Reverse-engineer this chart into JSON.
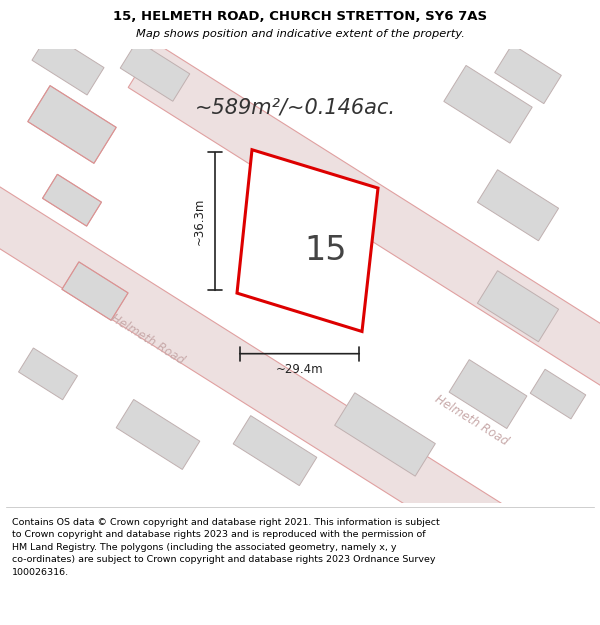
{
  "title_line1": "15, HELMETH ROAD, CHURCH STRETTON, SY6 7AS",
  "title_line2": "Map shows position and indicative extent of the property.",
  "area_text": "~589m²/~0.146ac.",
  "number_label": "15",
  "road_label1": "Helmeth Road",
  "road_label2": "Helmeth Road",
  "dim_height": "~36.3m",
  "dim_width": "~29.4m",
  "footer_text": "Contains OS data © Crown copyright and database right 2021. This information is subject\nto Crown copyright and database rights 2023 and is reproduced with the permission of\nHM Land Registry. The polygons (including the associated geometry, namely x, y\nco-ordinates) are subject to Crown copyright and database rights 2023 Ordnance Survey\n100026316.",
  "bg_color": "#ffffff",
  "map_bg": "#f7f0f0",
  "building_fill": "#d8d8d8",
  "building_edge": "#c0b0b0",
  "plot_fill": "#ffffff",
  "plot_edge": "#dd0000",
  "road_fill": "#ede0e0",
  "road_outline": "#e0a0a0",
  "title_color": "#000000",
  "footer_color": "#000000",
  "dim_line_color": "#222222",
  "road_text_color": "#c8aaaa",
  "area_text_color": "#333333",
  "number_color": "#444444"
}
